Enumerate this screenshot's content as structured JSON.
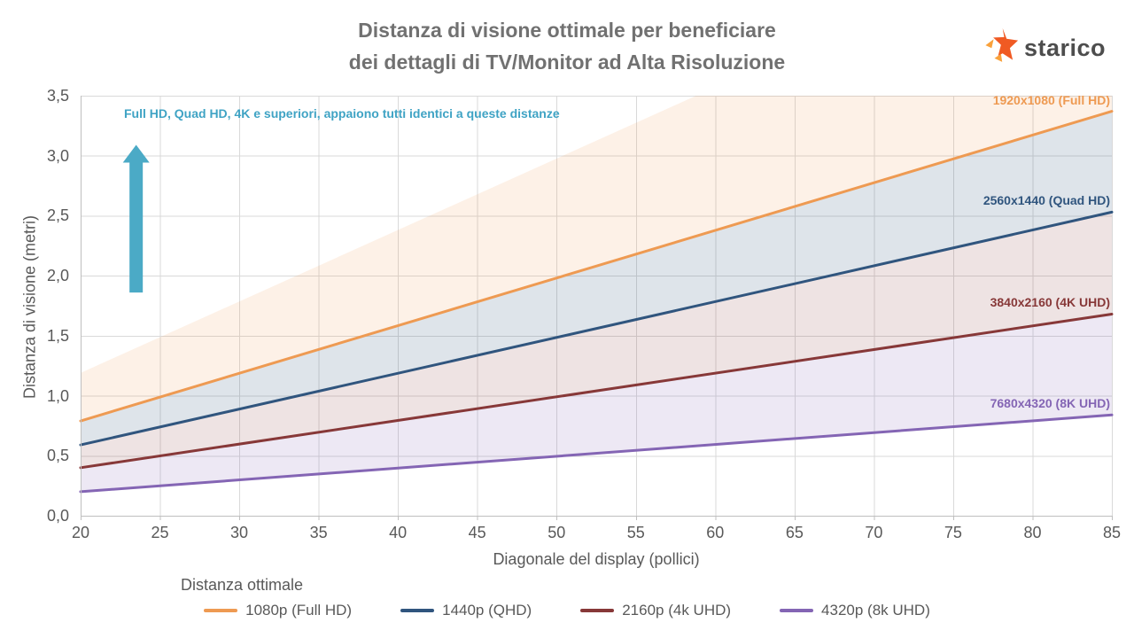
{
  "title": {
    "line1": "Distanza di visione ottimale per beneficiare",
    "line2": "dei dettagli di TV/Monitor ad Alta Risoluzione"
  },
  "brand": {
    "name": "starico"
  },
  "colors": {
    "logo_main": "#f05a23",
    "logo_light": "#f9a13b",
    "grid": "#d9d9d9",
    "axis": "#bfbfbf",
    "annotation": "#3fa3c4",
    "arrow": "#4baac6"
  },
  "chart_data": {
    "type": "line",
    "title": "Distanza di visione ottimale per beneficiare dei dettagli di TV/Monitor ad Alta Risoluzione",
    "xlabel": "Diagonale del display (pollici)",
    "ylabel": "Distanza di visione (metri)",
    "xlim": [
      20,
      85
    ],
    "ylim": [
      0,
      3.5
    ],
    "grid": true,
    "x_ticks": [
      20,
      25,
      30,
      35,
      40,
      45,
      50,
      55,
      60,
      65,
      70,
      75,
      80,
      85
    ],
    "y_ticks": {
      "values": [
        0,
        0.5,
        1.0,
        1.5,
        2.0,
        2.5,
        3.0,
        3.5
      ],
      "labels": [
        "0,0",
        "0,5",
        "1,0",
        "1,5",
        "2,0",
        "2,5",
        "3,0",
        "3,5"
      ]
    },
    "legend_title": "Distanza ottimale",
    "legend_position": "bottom",
    "series": [
      {
        "legend": "1080p (Full HD)",
        "line_label": "1920x1080 (Full HD)",
        "color": "#ee9a52",
        "x": [
          20,
          85
        ],
        "y": [
          0.79,
          3.37
        ]
      },
      {
        "legend": "1440p (QHD)",
        "line_label": "2560x1440 (Quad HD)",
        "color": "#30557e",
        "x": [
          20,
          85
        ],
        "y": [
          0.59,
          2.53
        ]
      },
      {
        "legend": "2160p (4k UHD)",
        "line_label": "3840x2160 (4K UHD)",
        "color": "#873838",
        "x": [
          20,
          85
        ],
        "y": [
          0.4,
          1.68
        ]
      },
      {
        "legend": "4320p (8k UHD)",
        "line_label": "7680x4320 (8K UHD)",
        "color": "#8465b4",
        "x": [
          20,
          85
        ],
        "y": [
          0.2,
          0.84
        ]
      }
    ],
    "bands": [
      {
        "x": [
          20,
          85
        ],
        "top_y": [
          1.19,
          5.06
        ],
        "bottom_y": [
          0.79,
          3.37
        ],
        "fill": "rgba(241,150,70,0.13)"
      },
      {
        "x": [
          20,
          85
        ],
        "top_y": [
          0.79,
          3.37
        ],
        "bottom_y": [
          0.59,
          2.53
        ],
        "fill": "rgba(49,86,126,0.16)"
      },
      {
        "x": [
          20,
          85
        ],
        "top_y": [
          0.59,
          2.53
        ],
        "bottom_y": [
          0.4,
          1.68
        ],
        "fill": "rgba(135,59,59,0.14)"
      },
      {
        "x": [
          20,
          85
        ],
        "top_y": [
          0.4,
          1.68
        ],
        "bottom_y": [
          0.2,
          0.84
        ],
        "fill": "rgba(134,103,184,0.15)"
      }
    ],
    "annotation": {
      "text": "Full HD, Quad HD, 4K e superiori, appaiono tutti identici a queste distanze",
      "arrow": {
        "x": 23.5,
        "y_from": 1.86,
        "y_to": 3.09
      }
    }
  }
}
